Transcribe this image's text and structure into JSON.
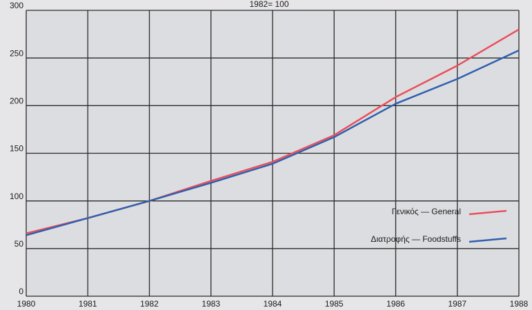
{
  "chart_data": {
    "type": "line",
    "title": "1982= 100",
    "x": [
      1980,
      1981,
      1982,
      1983,
      1984,
      1985,
      1986,
      1987,
      1988
    ],
    "series": [
      {
        "name": "Γενικός — General",
        "color": "#e8505b",
        "values": [
          66,
          82,
          100,
          121,
          141,
          169,
          209,
          242,
          280
        ]
      },
      {
        "name": "Διατροφής — Foodstuffs",
        "color": "#2f5fae",
        "values": [
          64,
          82,
          100,
          119,
          139,
          167,
          202,
          228,
          258
        ]
      }
    ],
    "xlim": [
      1980,
      1988
    ],
    "xticks": [
      1980,
      1981,
      1982,
      1983,
      1984,
      1985,
      1986,
      1987,
      1988
    ],
    "ylim": [
      0,
      300
    ],
    "yticks": [
      0,
      50,
      100,
      150,
      200,
      250,
      300
    ],
    "grid": true,
    "legend": "lower right"
  }
}
